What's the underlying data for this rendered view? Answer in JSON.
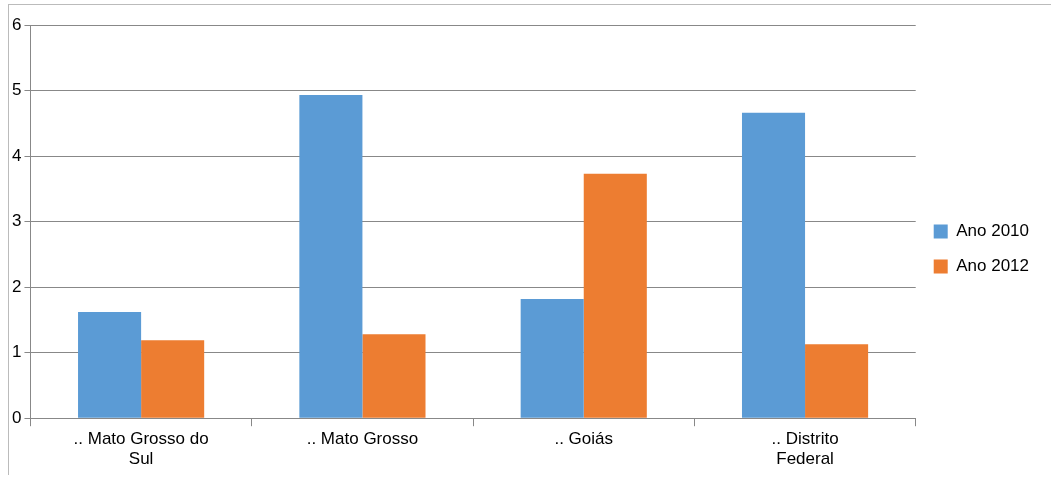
{
  "chart_data": {
    "type": "bar",
    "categories": [
      ".. Mato Grosso do Sul",
      ".. Mato Grosso",
      ".. Goiás",
      ".. Distrito Federal"
    ],
    "series": [
      {
        "name": "Ano 2010",
        "color": "#5b9bd5",
        "values": [
          1.62,
          4.93,
          1.82,
          4.66
        ]
      },
      {
        "name": "Ano 2012",
        "color": "#ed7d31",
        "values": [
          1.19,
          1.28,
          3.73,
          1.13
        ]
      }
    ],
    "ylim": [
      0,
      6
    ],
    "yticks": [
      0,
      1,
      2,
      3,
      4,
      5,
      6
    ],
    "grid": "y",
    "legend": "right"
  }
}
